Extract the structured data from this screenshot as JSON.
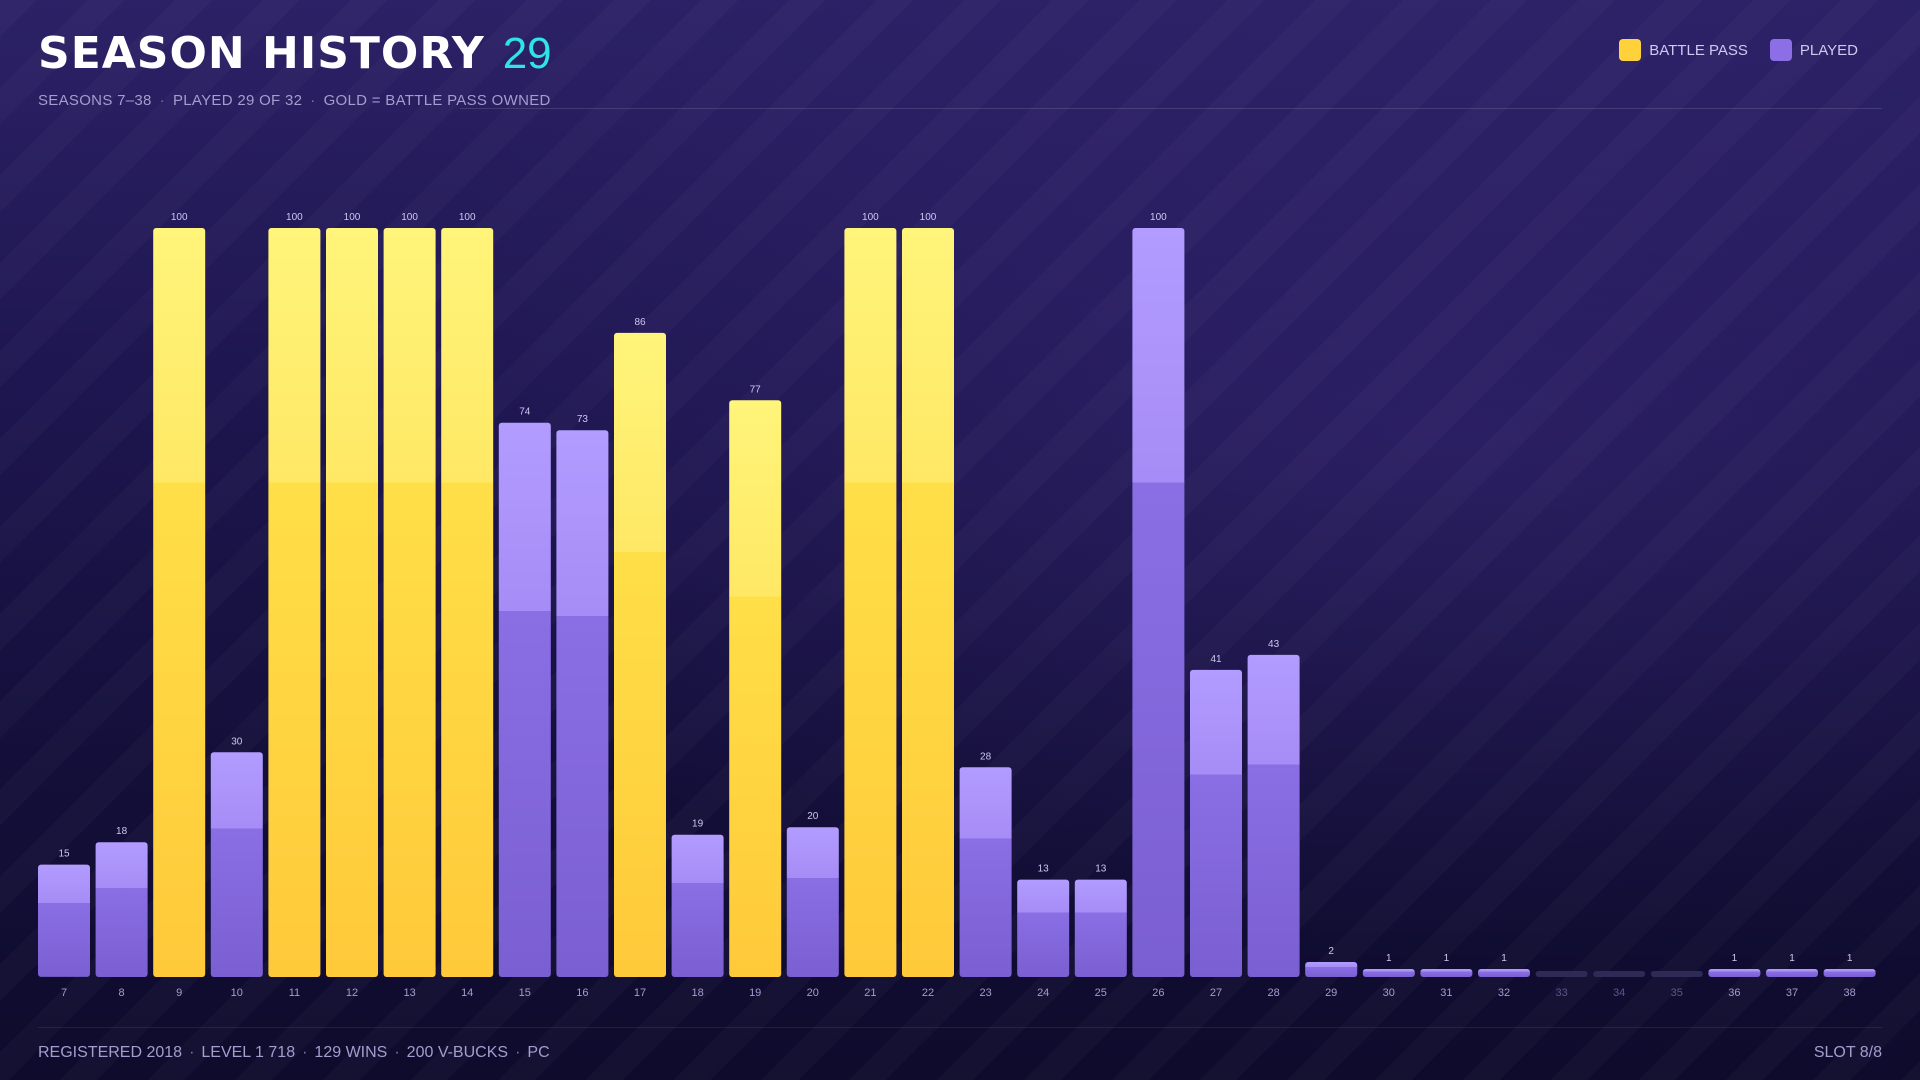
{
  "header": {
    "title": "SEASON HISTORY",
    "count": "29",
    "subtitle_parts": [
      "SEASONS 7–38",
      "PLAYED 29 OF 32",
      "GOLD = BATTLE PASS OWNED"
    ]
  },
  "legend": {
    "items": [
      {
        "label": "BATTLE PASS",
        "color": "#ffd23c"
      },
      {
        "label": "PLAYED",
        "color": "#8c6fe6"
      }
    ]
  },
  "footer": {
    "parts": [
      "REGISTERED 2018",
      "LEVEL 1 718",
      "129 WINS",
      "200 V-BUCKS",
      "PC"
    ],
    "slot": "SLOT 8/8"
  },
  "colors": {
    "gold": "#ffd23c",
    "gold_light": "#fff57a",
    "purple": "#8467dc",
    "purple_light": "#b29cff",
    "empty": "#2f2a55",
    "value_label": "#cfc8f0",
    "tick_label": "#a59ccf",
    "tick_label_dim": "#5d568a"
  },
  "chart_data": {
    "type": "bar",
    "categories": [
      "7",
      "8",
      "9",
      "10",
      "11",
      "12",
      "13",
      "14",
      "15",
      "16",
      "17",
      "18",
      "19",
      "20",
      "21",
      "22",
      "23",
      "24",
      "25",
      "26",
      "27",
      "28",
      "29",
      "30",
      "31",
      "32",
      "33",
      "34",
      "35",
      "36",
      "37",
      "38"
    ],
    "values": [
      15,
      18,
      100,
      30,
      100,
      100,
      100,
      100,
      74,
      73,
      86,
      19,
      77,
      20,
      100,
      100,
      28,
      13,
      13,
      100,
      41,
      43,
      2,
      1,
      1,
      1,
      0,
      0,
      0,
      1,
      1,
      1
    ],
    "battle_pass": [
      false,
      false,
      true,
      false,
      true,
      true,
      true,
      true,
      false,
      false,
      true,
      false,
      true,
      false,
      true,
      true,
      false,
      false,
      false,
      false,
      false,
      false,
      false,
      false,
      false,
      false,
      false,
      false,
      false,
      false,
      false,
      false
    ],
    "played": [
      true,
      true,
      true,
      true,
      true,
      true,
      true,
      true,
      true,
      true,
      true,
      true,
      true,
      true,
      true,
      true,
      true,
      true,
      true,
      true,
      true,
      true,
      true,
      true,
      true,
      true,
      false,
      false,
      false,
      true,
      true,
      true
    ],
    "value_labels": [
      "15",
      "18",
      "100",
      "30",
      "100",
      "100",
      "100",
      "100",
      "74",
      "73",
      "86",
      "19",
      "77",
      "20",
      "100",
      "100",
      "28",
      "13",
      "13",
      "100",
      "41",
      "43",
      "2",
      "1",
      "1",
      "1",
      "",
      "",
      "",
      "1",
      "1",
      "1"
    ],
    "ylim": [
      0,
      100
    ],
    "grid": false,
    "legend_position": "top-right"
  }
}
